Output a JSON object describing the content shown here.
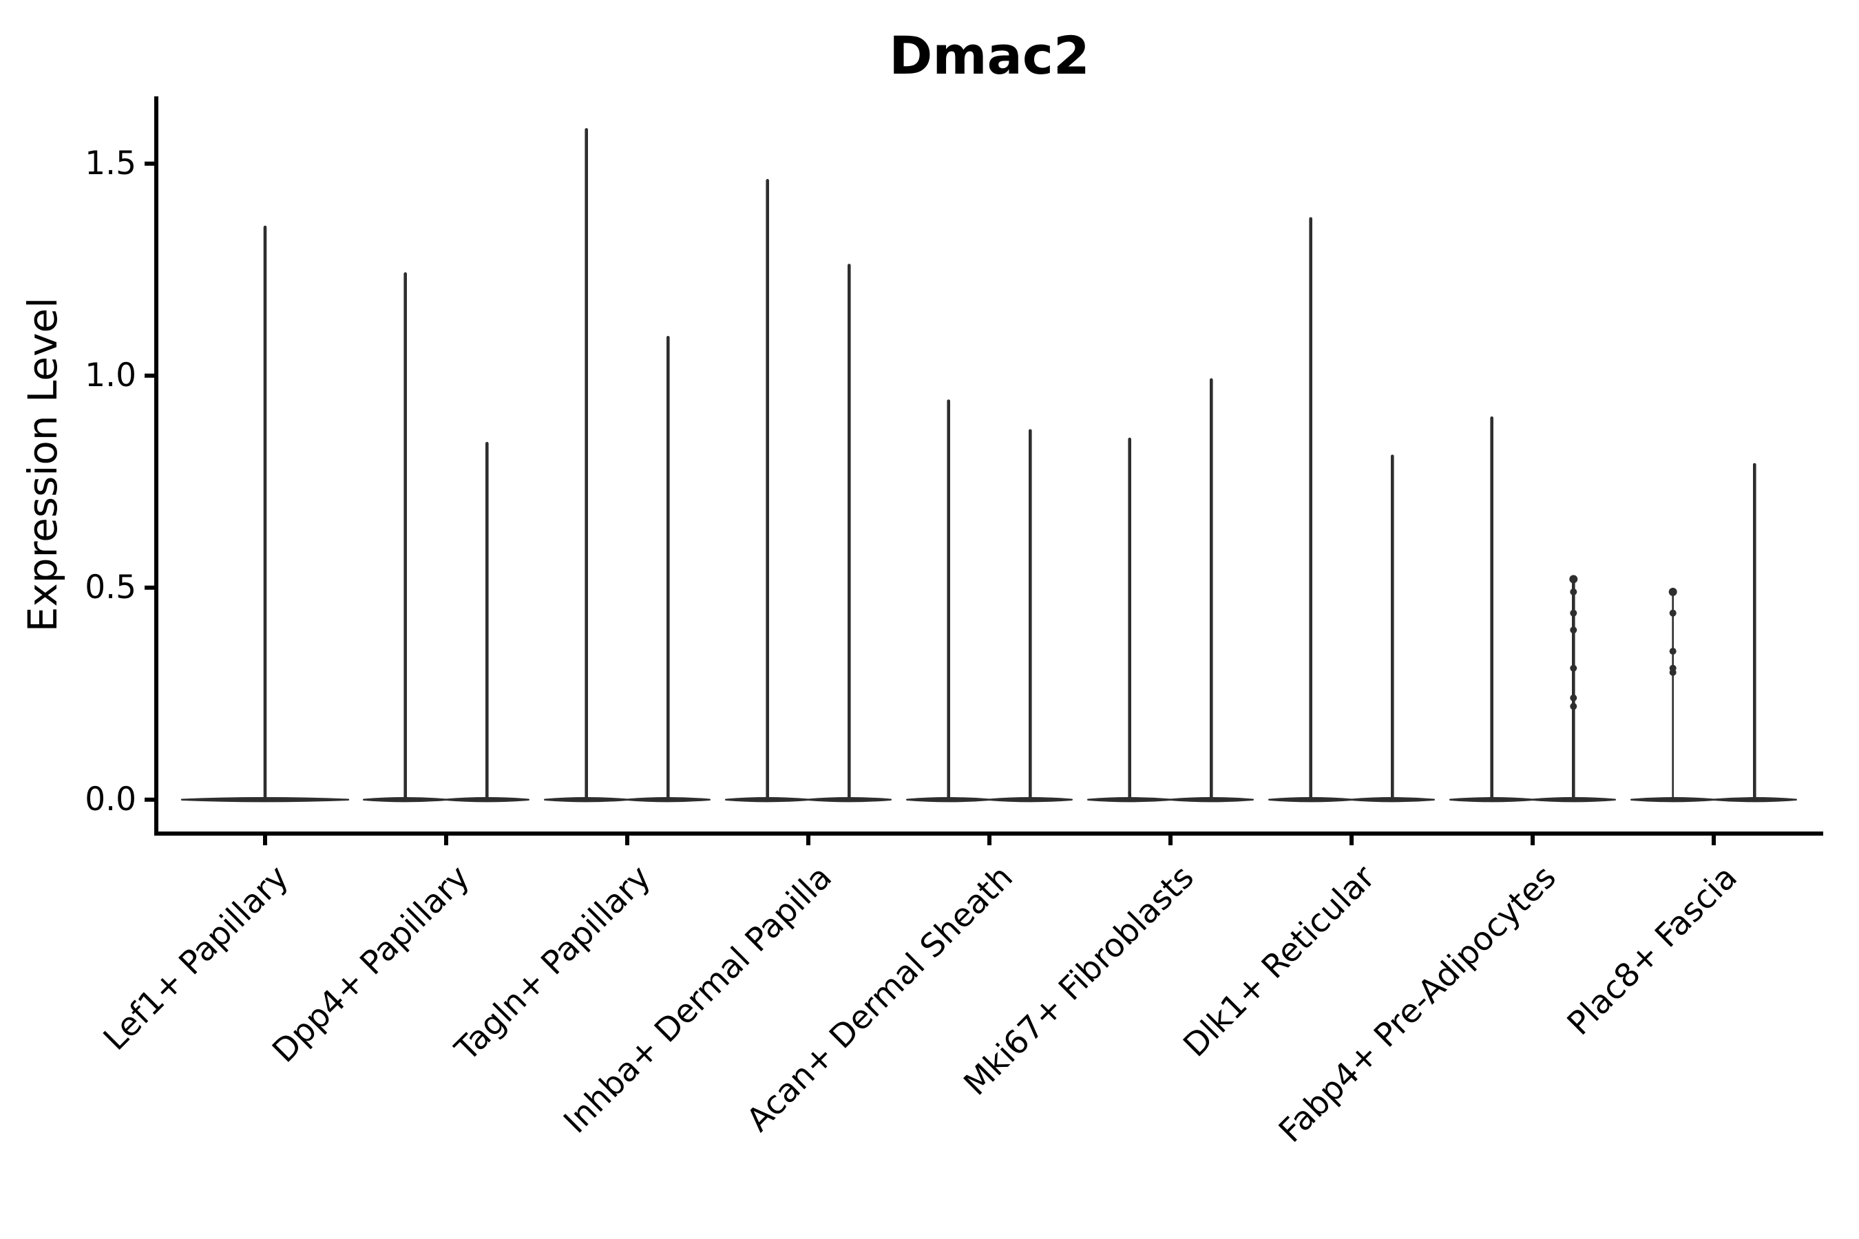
{
  "chart_data": {
    "type": "violin",
    "title": "Dmac2",
    "ylabel": "Expression Level",
    "xlabel": "",
    "ytick_labels": [
      "0.0",
      "0.5",
      "1.0",
      "1.5"
    ],
    "ytick_values": [
      0,
      0.5,
      1.0,
      1.5
    ],
    "ylim": [
      -0.08,
      1.66
    ],
    "grid": false,
    "legend": "none",
    "categories": [
      "Lef1+ Papillary",
      "Dpp4+ Papillary",
      "Tagln+ Papillary",
      "Inhba+ Dermal Papilla",
      "Acan+ Dermal Sheath",
      "Mki67+ Fibroblasts",
      "Dlk1+ Reticular",
      "Fabp4+ Pre-Adipocytes",
      "Plac8+ Fascia"
    ],
    "violins": [
      {
        "category_index": 0,
        "category": "Lef1+ Papillary",
        "slot": "full",
        "max_expression": 1.35,
        "thin": false,
        "points": []
      },
      {
        "category_index": 1,
        "category": "Dpp4+ Papillary",
        "slot": "left",
        "max_expression": 1.24,
        "thin": false,
        "points": []
      },
      {
        "category_index": 1,
        "category": "Dpp4+ Papillary",
        "slot": "right",
        "max_expression": 0.84,
        "thin": false,
        "points": []
      },
      {
        "category_index": 2,
        "category": "Tagln+ Papillary",
        "slot": "left",
        "max_expression": 1.58,
        "thin": false,
        "points": []
      },
      {
        "category_index": 2,
        "category": "Tagln+ Papillary",
        "slot": "right",
        "max_expression": 1.09,
        "thin": false,
        "points": []
      },
      {
        "category_index": 3,
        "category": "Inhba+ Dermal Papilla",
        "slot": "left",
        "max_expression": 1.46,
        "thin": false,
        "points": []
      },
      {
        "category_index": 3,
        "category": "Inhba+ Dermal Papilla",
        "slot": "right",
        "max_expression": 1.26,
        "thin": false,
        "points": []
      },
      {
        "category_index": 4,
        "category": "Acan+ Dermal Sheath",
        "slot": "left",
        "max_expression": 0.94,
        "thin": false,
        "points": []
      },
      {
        "category_index": 4,
        "category": "Acan+ Dermal Sheath",
        "slot": "right",
        "max_expression": 0.87,
        "thin": false,
        "points": []
      },
      {
        "category_index": 5,
        "category": "Mki67+ Fibroblasts",
        "slot": "left",
        "max_expression": 0.85,
        "thin": false,
        "points": []
      },
      {
        "category_index": 5,
        "category": "Mki67+ Fibroblasts",
        "slot": "right",
        "max_expression": 0.99,
        "thin": false,
        "points": []
      },
      {
        "category_index": 6,
        "category": "Dlk1+ Reticular",
        "slot": "left",
        "max_expression": 1.37,
        "thin": false,
        "points": []
      },
      {
        "category_index": 6,
        "category": "Dlk1+ Reticular",
        "slot": "right",
        "max_expression": 0.81,
        "thin": false,
        "points": []
      },
      {
        "category_index": 7,
        "category": "Fabp4+ Pre-Adipocytes",
        "slot": "left",
        "max_expression": 0.9,
        "thin": false,
        "points": []
      },
      {
        "category_index": 7,
        "category": "Fabp4+ Pre-Adipocytes",
        "slot": "right",
        "max_expression": 0.52,
        "thin": false,
        "points": [
          0.52,
          0.49,
          0.44,
          0.4,
          0.31,
          0.24,
          0.22
        ]
      },
      {
        "category_index": 8,
        "category": "Plac8+ Fascia",
        "slot": "left",
        "max_expression": 0.49,
        "thin": true,
        "points": [
          0.49,
          0.44,
          0.35,
          0.31,
          0.3
        ]
      },
      {
        "category_index": 8,
        "category": "Plac8+ Fascia",
        "slot": "right",
        "max_expression": 0.79,
        "thin": false,
        "points": []
      }
    ],
    "colors": {
      "violin": "#2e2e2e",
      "axis": "#000000",
      "text": "#000000",
      "background": "#ffffff"
    }
  }
}
